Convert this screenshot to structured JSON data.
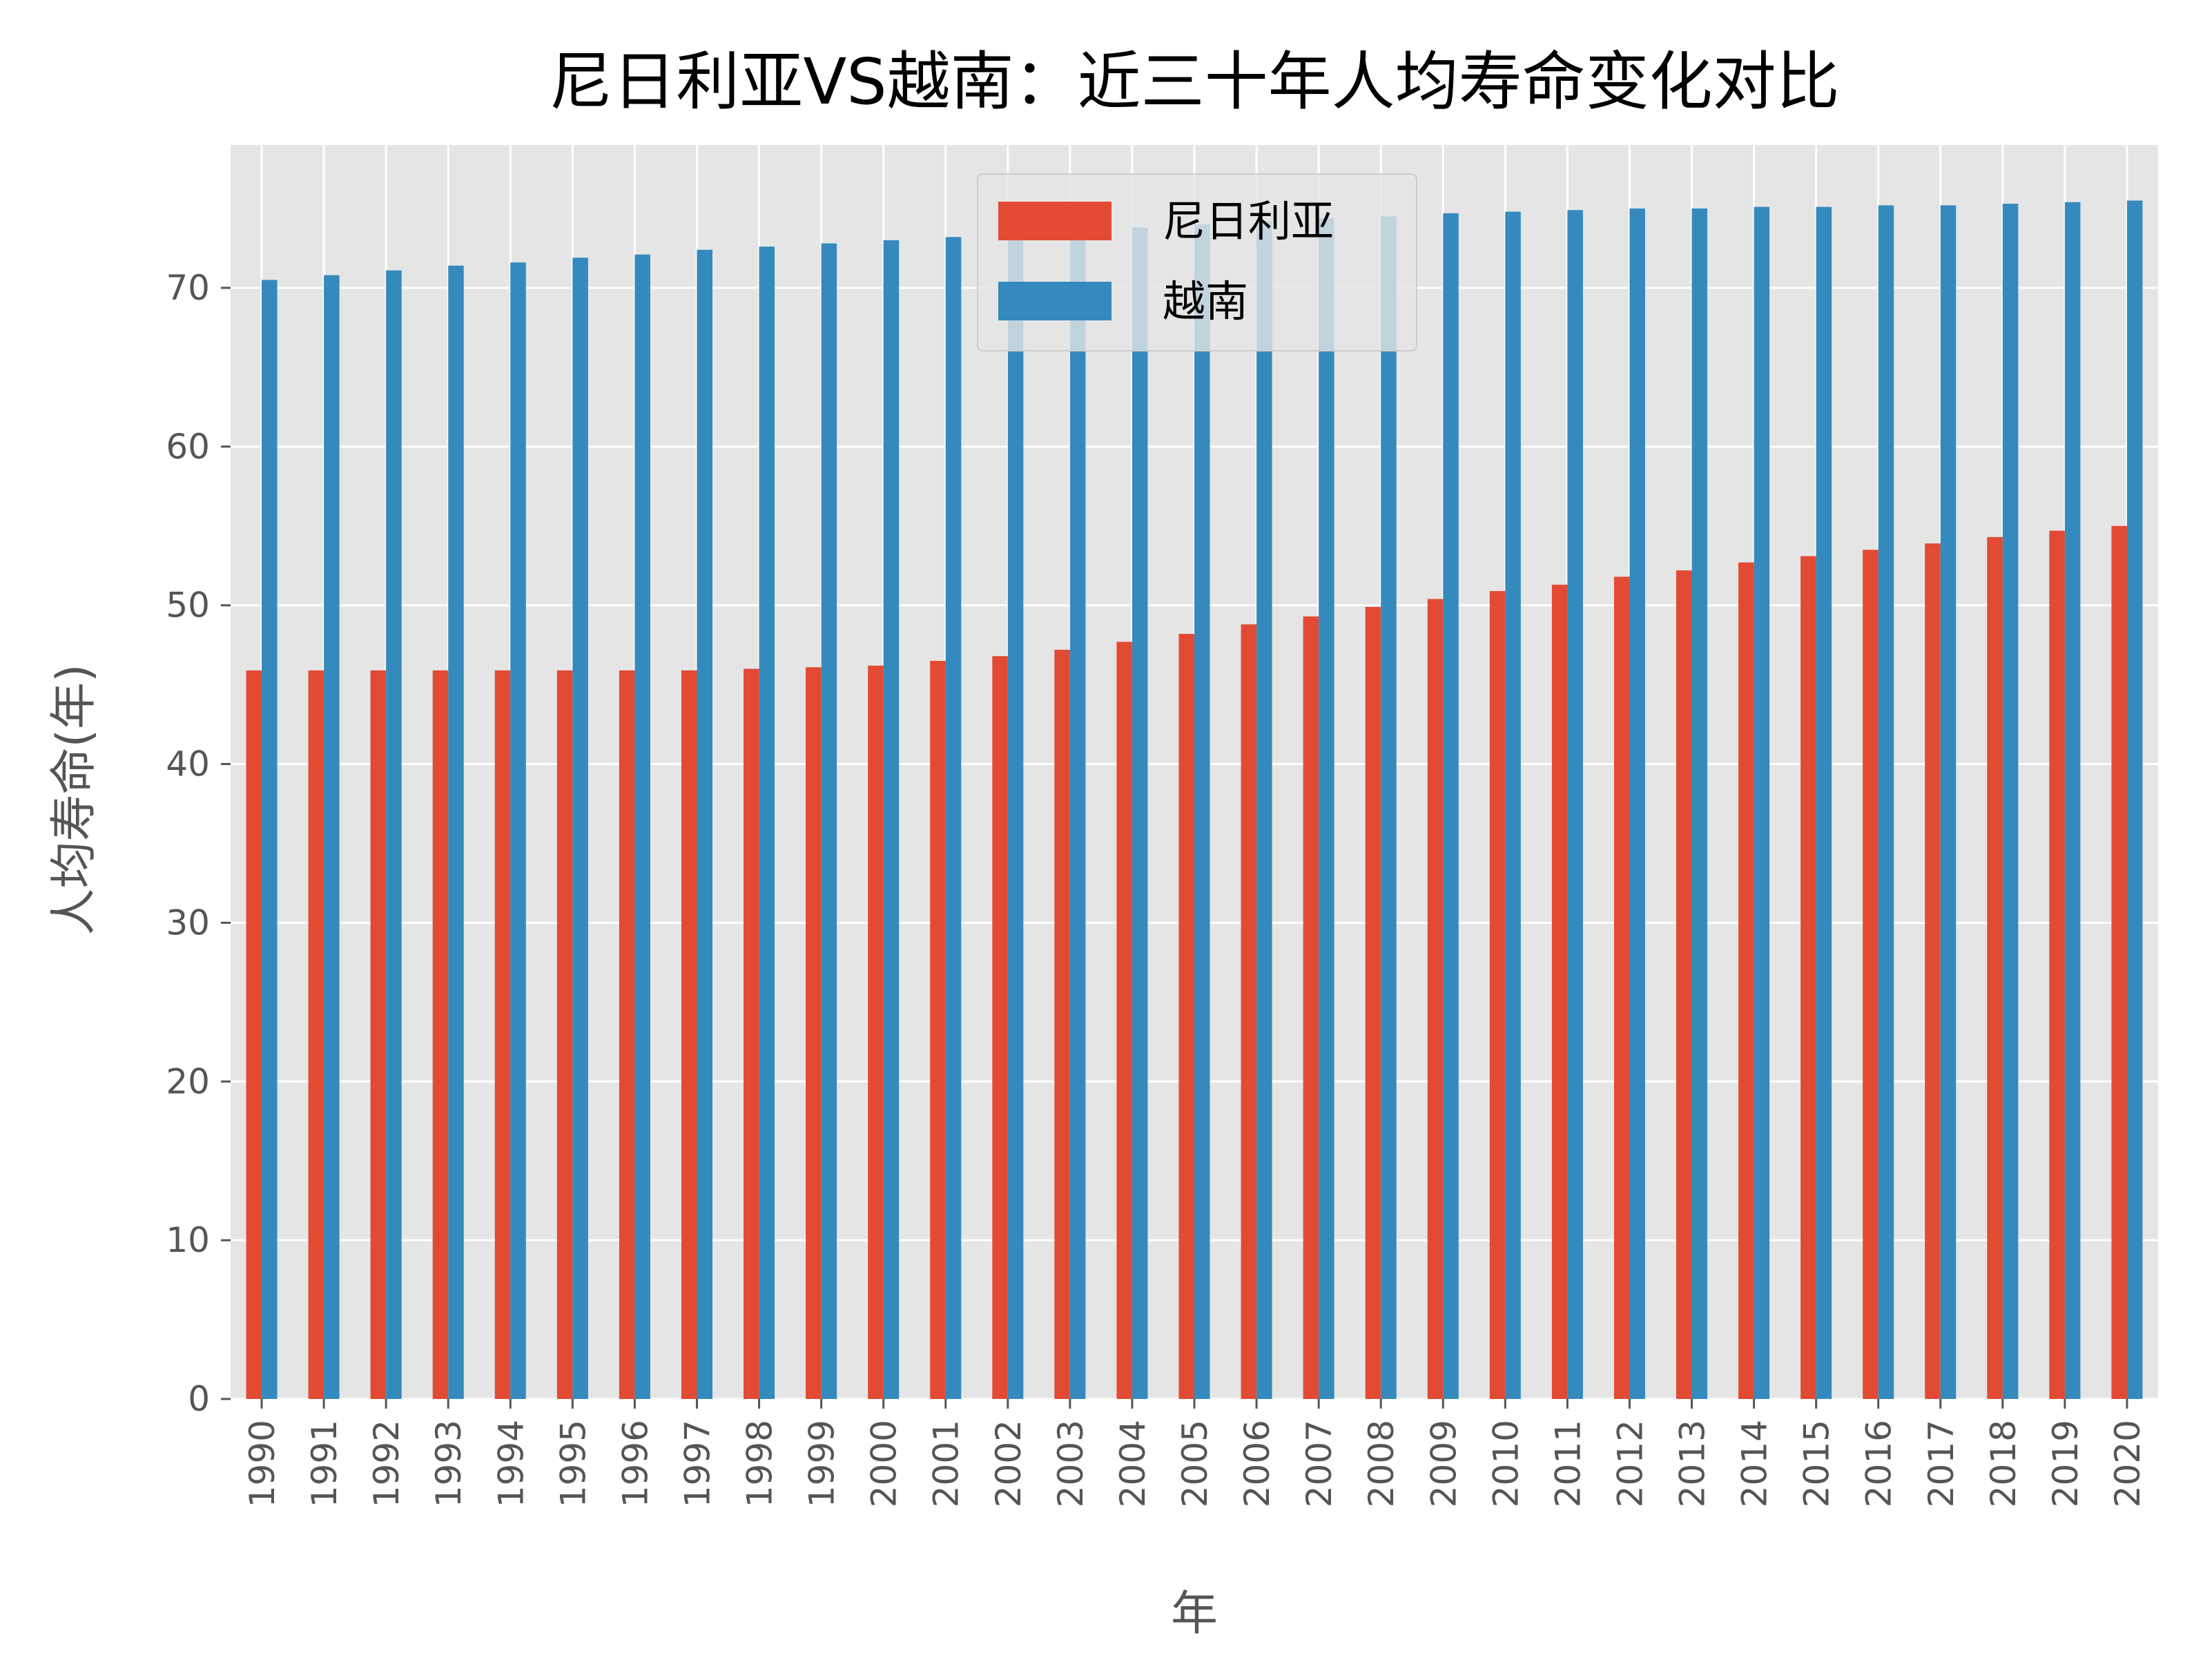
{
  "chart_data": {
    "type": "bar",
    "title": "尼日利亚VS越南：近三十年人均寿命变化对比",
    "xlabel": "年",
    "ylabel": "人均寿命(年)",
    "categories": [
      "1990",
      "1991",
      "1992",
      "1993",
      "1994",
      "1995",
      "1996",
      "1997",
      "1998",
      "1999",
      "2000",
      "2001",
      "2002",
      "2003",
      "2004",
      "2005",
      "2006",
      "2007",
      "2008",
      "2009",
      "2010",
      "2011",
      "2012",
      "2013",
      "2014",
      "2015",
      "2016",
      "2017",
      "2018",
      "2019",
      "2020"
    ],
    "series": [
      {
        "name": "尼日利亚",
        "color": "#e24a33",
        "values": [
          45.9,
          45.9,
          45.9,
          45.9,
          45.9,
          45.9,
          45.9,
          45.9,
          46.0,
          46.1,
          46.2,
          46.5,
          46.8,
          47.2,
          47.7,
          48.2,
          48.8,
          49.3,
          49.9,
          50.4,
          50.9,
          51.3,
          51.8,
          52.2,
          52.7,
          53.1,
          53.5,
          53.9,
          54.3,
          54.7,
          55.0
        ]
      },
      {
        "name": "越南",
        "color": "#348abd",
        "values": [
          70.5,
          70.8,
          71.1,
          71.4,
          71.6,
          71.9,
          72.1,
          72.4,
          72.6,
          72.8,
          73.0,
          73.2,
          73.4,
          73.6,
          73.8,
          74.0,
          74.2,
          74.4,
          74.5,
          74.7,
          74.8,
          74.9,
          75.0,
          75.0,
          75.1,
          75.1,
          75.2,
          75.2,
          75.3,
          75.4,
          75.5
        ]
      }
    ],
    "yticks": [
      "0",
      "10",
      "20",
      "30",
      "40",
      "50",
      "60",
      "70"
    ],
    "ylim": [
      0,
      79
    ],
    "grid": true,
    "legend_position": "upper-center",
    "background_color": "#e5e5e5"
  }
}
